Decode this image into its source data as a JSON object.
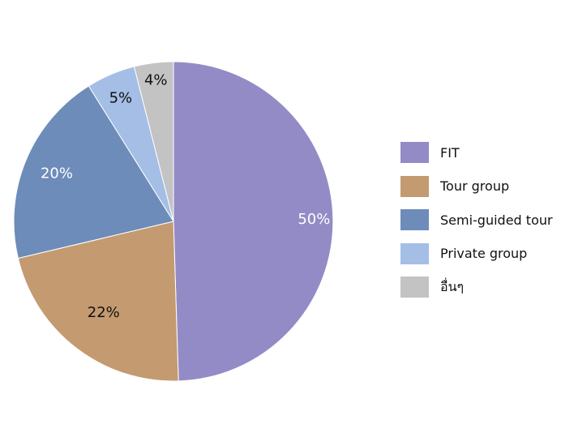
{
  "chart_data": {
    "type": "pie",
    "title": "",
    "start_angle_deg": 0,
    "direction": "clockwise",
    "legend_position": "right",
    "slices": [
      {
        "label": "FIT",
        "value": 50,
        "value_label": "50%",
        "color": "#938bc6",
        "label_color": "#ffffff"
      },
      {
        "label": "Tour group",
        "value": 22,
        "value_label": "22%",
        "color": "#c49a70",
        "label_color": "#111111"
      },
      {
        "label": "Semi-guided tour",
        "value": 20,
        "value_label": "20%",
        "color": "#6e8cb9",
        "label_color": "#ffffff"
      },
      {
        "label": "Private group",
        "value": 5,
        "value_label": "5%",
        "color": "#a4bee6",
        "label_color": "#111111"
      },
      {
        "label": "อื่นๆ",
        "value": 4,
        "value_label": "4%",
        "color": "#c3c3c3",
        "label_color": "#111111"
      }
    ]
  }
}
